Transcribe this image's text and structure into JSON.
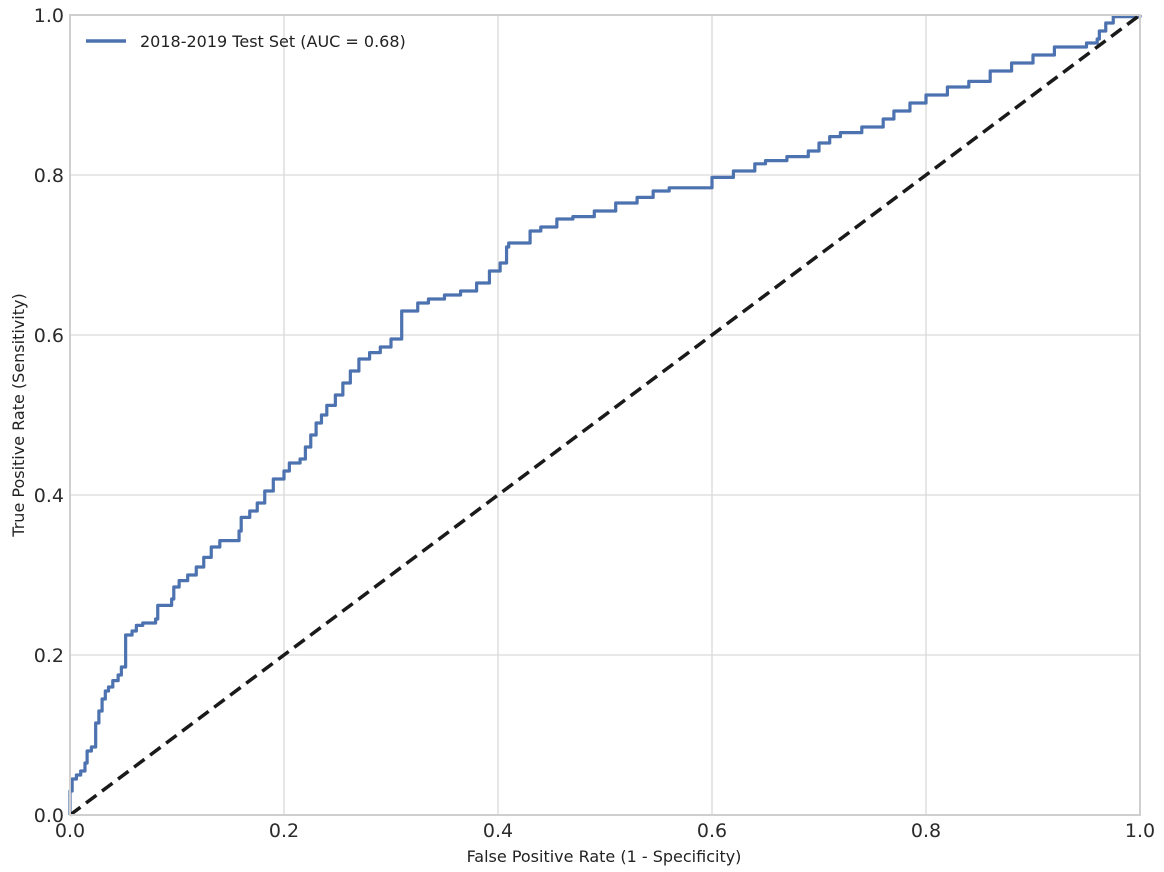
{
  "chart_data": {
    "type": "line",
    "title": "",
    "xlabel": "False Positive Rate (1 - Specificity)",
    "ylabel": "True Positive Rate (Sensitivity)",
    "xlim": [
      0.0,
      1.0
    ],
    "ylim": [
      0.0,
      1.0
    ],
    "xticks": [
      "0.0",
      "0.2",
      "0.4",
      "0.6",
      "0.8",
      "1.0"
    ],
    "yticks": [
      "0.0",
      "0.2",
      "0.4",
      "0.6",
      "0.8",
      "1.0"
    ],
    "grid": true,
    "legend_position": "top-left",
    "series": [
      {
        "name": "2018-2019 Test Set (AUC = 0.68)",
        "color": "#4c72b0",
        "style": "solid-step",
        "points": [
          [
            0.0,
            0.0
          ],
          [
            0.0,
            0.03
          ],
          [
            0.002,
            0.045
          ],
          [
            0.006,
            0.05
          ],
          [
            0.01,
            0.055
          ],
          [
            0.014,
            0.065
          ],
          [
            0.016,
            0.08
          ],
          [
            0.02,
            0.085
          ],
          [
            0.024,
            0.115
          ],
          [
            0.027,
            0.13
          ],
          [
            0.03,
            0.145
          ],
          [
            0.033,
            0.155
          ],
          [
            0.036,
            0.16
          ],
          [
            0.04,
            0.168
          ],
          [
            0.045,
            0.175
          ],
          [
            0.048,
            0.185
          ],
          [
            0.052,
            0.225
          ],
          [
            0.058,
            0.23
          ],
          [
            0.062,
            0.237
          ],
          [
            0.068,
            0.24
          ],
          [
            0.08,
            0.245
          ],
          [
            0.082,
            0.262
          ],
          [
            0.095,
            0.27
          ],
          [
            0.097,
            0.285
          ],
          [
            0.102,
            0.293
          ],
          [
            0.11,
            0.3
          ],
          [
            0.118,
            0.31
          ],
          [
            0.125,
            0.322
          ],
          [
            0.132,
            0.335
          ],
          [
            0.14,
            0.343
          ],
          [
            0.158,
            0.355
          ],
          [
            0.16,
            0.372
          ],
          [
            0.168,
            0.38
          ],
          [
            0.175,
            0.39
          ],
          [
            0.182,
            0.405
          ],
          [
            0.19,
            0.42
          ],
          [
            0.2,
            0.43
          ],
          [
            0.205,
            0.44
          ],
          [
            0.215,
            0.445
          ],
          [
            0.22,
            0.46
          ],
          [
            0.225,
            0.475
          ],
          [
            0.23,
            0.49
          ],
          [
            0.235,
            0.5
          ],
          [
            0.24,
            0.512
          ],
          [
            0.248,
            0.525
          ],
          [
            0.255,
            0.54
          ],
          [
            0.262,
            0.555
          ],
          [
            0.27,
            0.57
          ],
          [
            0.28,
            0.578
          ],
          [
            0.29,
            0.585
          ],
          [
            0.3,
            0.595
          ],
          [
            0.31,
            0.63
          ],
          [
            0.325,
            0.64
          ],
          [
            0.335,
            0.645
          ],
          [
            0.35,
            0.65
          ],
          [
            0.365,
            0.655
          ],
          [
            0.38,
            0.665
          ],
          [
            0.392,
            0.68
          ],
          [
            0.402,
            0.69
          ],
          [
            0.408,
            0.71
          ],
          [
            0.41,
            0.715
          ],
          [
            0.43,
            0.73
          ],
          [
            0.44,
            0.735
          ],
          [
            0.455,
            0.745
          ],
          [
            0.47,
            0.748
          ],
          [
            0.49,
            0.755
          ],
          [
            0.51,
            0.765
          ],
          [
            0.53,
            0.772
          ],
          [
            0.545,
            0.78
          ],
          [
            0.56,
            0.784
          ],
          [
            0.6,
            0.797
          ],
          [
            0.62,
            0.805
          ],
          [
            0.64,
            0.814
          ],
          [
            0.65,
            0.818
          ],
          [
            0.67,
            0.823
          ],
          [
            0.69,
            0.83
          ],
          [
            0.7,
            0.84
          ],
          [
            0.71,
            0.848
          ],
          [
            0.72,
            0.853
          ],
          [
            0.74,
            0.86
          ],
          [
            0.76,
            0.87
          ],
          [
            0.77,
            0.88
          ],
          [
            0.785,
            0.89
          ],
          [
            0.8,
            0.9
          ],
          [
            0.82,
            0.91
          ],
          [
            0.84,
            0.917
          ],
          [
            0.86,
            0.93
          ],
          [
            0.88,
            0.94
          ],
          [
            0.9,
            0.95
          ],
          [
            0.92,
            0.96
          ],
          [
            0.95,
            0.965
          ],
          [
            0.96,
            0.97
          ],
          [
            0.962,
            0.98
          ],
          [
            0.968,
            0.99
          ],
          [
            0.975,
            0.998
          ],
          [
            1.0,
            1.0
          ]
        ]
      },
      {
        "name": "",
        "color": "#1a1a1a",
        "style": "dashed",
        "points": [
          [
            0.0,
            0.0
          ],
          [
            1.0,
            1.0
          ]
        ]
      }
    ]
  }
}
